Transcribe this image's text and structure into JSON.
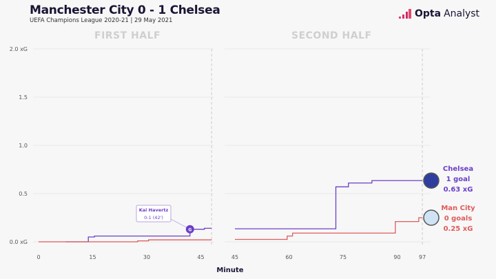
{
  "header": {
    "title": "Manchester City 0 - 1 Chelsea",
    "subtitle": "UEFA Champions League 2020-21 | 29 May 2021",
    "brand_bold": "Opta",
    "brand_light": "Analyst"
  },
  "colors": {
    "chelsea": "#6a3fc8",
    "mancity": "#e05a5a",
    "grid": "#e4e4e4"
  },
  "chart_data": {
    "type": "line",
    "title": "Manchester City 0 - 1 Chelsea",
    "panels": [
      "FIRST HALF",
      "SECOND HALF"
    ],
    "xlabel": "Minute",
    "ylabel": "xG",
    "ylim": [
      0,
      2.0
    ],
    "y_ticks": [
      "0.0 xG",
      "0.5",
      "1.0",
      "1.5",
      "2.0 xG"
    ],
    "y_tick_values": [
      0,
      0.5,
      1.0,
      1.5,
      2.0
    ],
    "x_ticks_first": [
      0,
      15,
      30,
      45
    ],
    "x_ticks_second": [
      45,
      60,
      75,
      90,
      97
    ],
    "first_half_end": 48,
    "series": [
      {
        "name": "Chelsea",
        "goals_label": "1 goal",
        "xg_label": "0.63 xG",
        "first_half": [
          [
            7.5,
            0
          ],
          [
            13.8,
            0
          ],
          [
            13.8,
            0.05
          ],
          [
            15.5,
            0.05
          ],
          [
            15.5,
            0.06
          ],
          [
            42,
            0.06
          ],
          [
            42,
            0.13
          ],
          [
            46,
            0.13
          ],
          [
            46,
            0.14
          ],
          [
            48,
            0.14
          ]
        ],
        "second_half": [
          [
            45,
            0.135
          ],
          [
            73,
            0.135
          ],
          [
            73,
            0.57
          ],
          [
            76.5,
            0.57
          ],
          [
            76.5,
            0.61
          ],
          [
            83,
            0.61
          ],
          [
            83,
            0.635
          ],
          [
            97,
            0.635
          ]
        ]
      },
      {
        "name": "Man City",
        "goals_label": "0 goals",
        "xg_label": "0.25 xG",
        "first_half": [
          [
            0,
            0
          ],
          [
            27.5,
            0
          ],
          [
            27.5,
            0.01
          ],
          [
            30.5,
            0.01
          ],
          [
            30.5,
            0.02
          ],
          [
            48,
            0.02
          ]
        ],
        "second_half": [
          [
            45,
            0.025
          ],
          [
            59.5,
            0.025
          ],
          [
            59.5,
            0.06
          ],
          [
            61,
            0.06
          ],
          [
            61,
            0.09
          ],
          [
            89.5,
            0.09
          ],
          [
            89.5,
            0.21
          ],
          [
            96,
            0.21
          ],
          [
            96,
            0.25
          ],
          [
            97,
            0.25
          ]
        ]
      }
    ],
    "annotation": {
      "player": "Kai Havertz",
      "detail": "0-1 (42')",
      "minute": 42,
      "xg": 0.13,
      "marker": "G"
    }
  }
}
